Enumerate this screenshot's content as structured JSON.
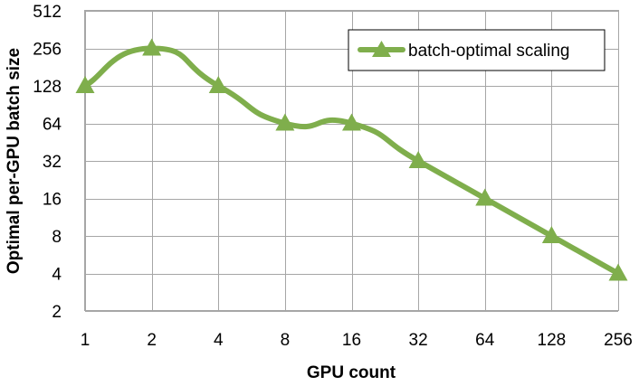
{
  "chart_data": {
    "type": "line",
    "title": "",
    "xlabel": "GPU count",
    "ylabel": "Optimal per-GPU batch size",
    "x_scale": "log2",
    "y_scale": "log2",
    "x": [
      1,
      2,
      4,
      8,
      16,
      32,
      64,
      128,
      256
    ],
    "x_tick_labels": [
      "1",
      "2",
      "4",
      "8",
      "16",
      "32",
      "64",
      "128",
      "256"
    ],
    "y_tick_labels": [
      "2",
      "4",
      "8",
      "16",
      "32",
      "64",
      "128",
      "256",
      "512"
    ],
    "ylim": [
      2,
      512
    ],
    "grid": true,
    "legend_position": "top-right",
    "series": [
      {
        "name": "batch-optimal scaling",
        "color": "#7FAE4C",
        "marker": "triangle",
        "smooth": true,
        "values": [
          128,
          256,
          128,
          64,
          64,
          32,
          16,
          8,
          4
        ]
      }
    ]
  }
}
